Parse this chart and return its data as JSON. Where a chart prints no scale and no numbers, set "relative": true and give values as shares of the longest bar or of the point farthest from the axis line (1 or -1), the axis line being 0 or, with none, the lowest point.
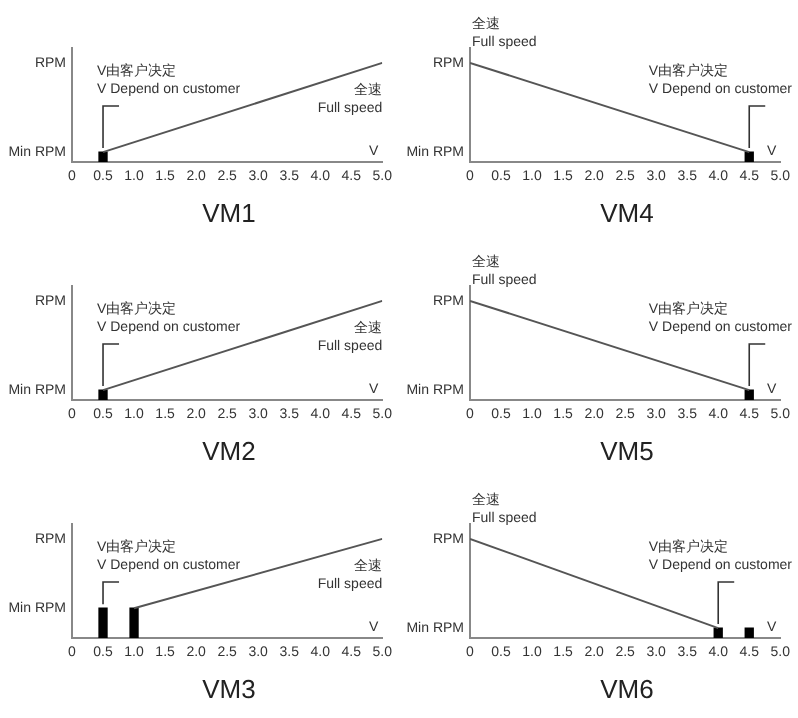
{
  "chart_data": [
    {
      "type": "line",
      "title": "VM1",
      "xlabel": "V",
      "ylabel": "RPM",
      "relative": true,
      "xlim": [
        0,
        5
      ],
      "xticks": [
        0,
        0.5,
        {
          "value": 1,
          "label": "1.0"
        },
        1.5,
        {
          "value": 2,
          "label": "2.0"
        },
        2.5,
        {
          "value": 3,
          "label": "3.0"
        },
        3.5,
        {
          "value": 4,
          "label": "4.0"
        },
        4.5,
        {
          "value": 5,
          "label": "5.0"
        }
      ],
      "marker": "none",
      "series": [
        {
          "type": "line",
          "color": "#555555",
          "x": [
            0.5,
            5
          ],
          "values": [
            0.1,
            1
          ]
        },
        {
          "type": "bar",
          "color": "#000000",
          "x": [
            0.5
          ],
          "values": [
            0.1
          ]
        }
      ],
      "annotations": [
        "Min RPM",
        "V由客户决定",
        "V Depend on customer",
        "全速",
        "Full speed"
      ]
    },
    {
      "type": "line",
      "title": "VM4",
      "xlabel": "V",
      "ylabel": "RPM",
      "relative": true,
      "xlim": [
        0,
        5
      ],
      "xticks": [
        0,
        0.5,
        {
          "value": 1,
          "label": "1.0"
        },
        1.5,
        {
          "value": 2,
          "label": "2.0"
        },
        2.5,
        {
          "value": 3,
          "label": "3.0"
        },
        3.5,
        {
          "value": 4,
          "label": "4.0"
        },
        4.5,
        {
          "value": 5,
          "label": "5.0"
        }
      ],
      "marker": "none",
      "series": [
        {
          "type": "line",
          "color": "#555555",
          "x": [
            0,
            4.5
          ],
          "values": [
            1,
            0.1
          ]
        },
        {
          "type": "bar",
          "color": "#000000",
          "x": [
            4.5
          ],
          "values": [
            0.1
          ]
        }
      ],
      "annotations": [
        "Min RPM",
        "V由客户决定",
        "V Depend on customer",
        "全速",
        "Full speed"
      ]
    },
    {
      "type": "line",
      "title": "VM2",
      "xlabel": "V",
      "ylabel": "RPM",
      "relative": true,
      "xlim": [
        0,
        5
      ],
      "xticks": [
        0,
        0.5,
        {
          "value": 1,
          "label": "1.0"
        },
        1.5,
        {
          "value": 2,
          "label": "2.0"
        },
        2.5,
        {
          "value": 3,
          "label": "3.0"
        },
        3.5,
        {
          "value": 4,
          "label": "4.0"
        },
        4.5,
        {
          "value": 5,
          "label": "5.0"
        }
      ],
      "marker": "none",
      "series": [
        {
          "type": "line",
          "color": "#555555",
          "x": [
            0.5,
            5
          ],
          "values": [
            0.1,
            1
          ]
        },
        {
          "type": "bar",
          "color": "#000000",
          "x": [
            0.5
          ],
          "values": [
            0.1
          ]
        }
      ],
      "annotations": [
        "Min RPM",
        "V由客户决定",
        "V Depend on customer",
        "全速",
        "Full speed"
      ]
    },
    {
      "type": "line",
      "title": "VM5",
      "xlabel": "V",
      "ylabel": "RPM",
      "relative": true,
      "xlim": [
        0,
        5
      ],
      "xticks": [
        0,
        0.5,
        {
          "value": 1,
          "label": "1.0"
        },
        1.5,
        {
          "value": 2,
          "label": "2.0"
        },
        2.5,
        {
          "value": 3,
          "label": "3.0"
        },
        3.5,
        {
          "value": 4,
          "label": "4.0"
        },
        4.5,
        {
          "value": 5,
          "label": "5.0"
        }
      ],
      "marker": "none",
      "series": [
        {
          "type": "line",
          "color": "#555555",
          "x": [
            0,
            4.5
          ],
          "values": [
            1,
            0.1
          ]
        },
        {
          "type": "bar",
          "color": "#000000",
          "x": [
            4.5
          ],
          "values": [
            0.1
          ]
        }
      ],
      "annotations": [
        "Min RPM",
        "V由客户决定",
        "V Depend on customer",
        "全速",
        "Full speed"
      ]
    },
    {
      "type": "line",
      "title": "VM3",
      "xlabel": "V",
      "ylabel": "RPM",
      "relative": true,
      "xlim": [
        0,
        5
      ],
      "xticks": [
        0,
        0.5,
        {
          "value": 1,
          "label": "1.0"
        },
        1.5,
        {
          "value": 2,
          "label": "2.0"
        },
        2.5,
        {
          "value": 3,
          "label": "3.0"
        },
        3.5,
        {
          "value": 4,
          "label": "4.0"
        },
        4.5,
        {
          "value": 5,
          "label": "5.0"
        }
      ],
      "marker": "none",
      "series": [
        {
          "type": "line",
          "color": "#555555",
          "x": [
            1,
            5
          ],
          "values": [
            0.3,
            1
          ]
        },
        {
          "type": "bar",
          "color": "#000000",
          "x": [
            0.5,
            1
          ],
          "values": [
            0.3,
            0.3
          ]
        }
      ],
      "annotations": [
        "Min RPM",
        "V由客户决定",
        "V Depend on customer",
        "全速",
        "Full speed"
      ]
    },
    {
      "type": "line",
      "title": "VM6",
      "xlabel": "V",
      "ylabel": "RPM",
      "relative": true,
      "xlim": [
        0,
        5
      ],
      "xticks": [
        0,
        0.5,
        {
          "value": 1,
          "label": "1.0"
        },
        1.5,
        {
          "value": 2,
          "label": "2.0"
        },
        2.5,
        {
          "value": 3,
          "label": "3.0"
        },
        3.5,
        {
          "value": 4,
          "label": "4.0"
        },
        4.5,
        {
          "value": 5,
          "label": "5.0"
        }
      ],
      "marker": "none",
      "series": [
        {
          "type": "line",
          "color": "#555555",
          "x": [
            0,
            4
          ],
          "values": [
            1,
            0.1
          ]
        },
        {
          "type": "bar",
          "color": "#000000",
          "x": [
            4,
            4.5
          ],
          "values": [
            0.1,
            0.1
          ]
        }
      ],
      "annotations": [
        "Min RPM",
        "V由客户决定",
        "V Depend on customer",
        "全速",
        "Full speed"
      ]
    }
  ]
}
